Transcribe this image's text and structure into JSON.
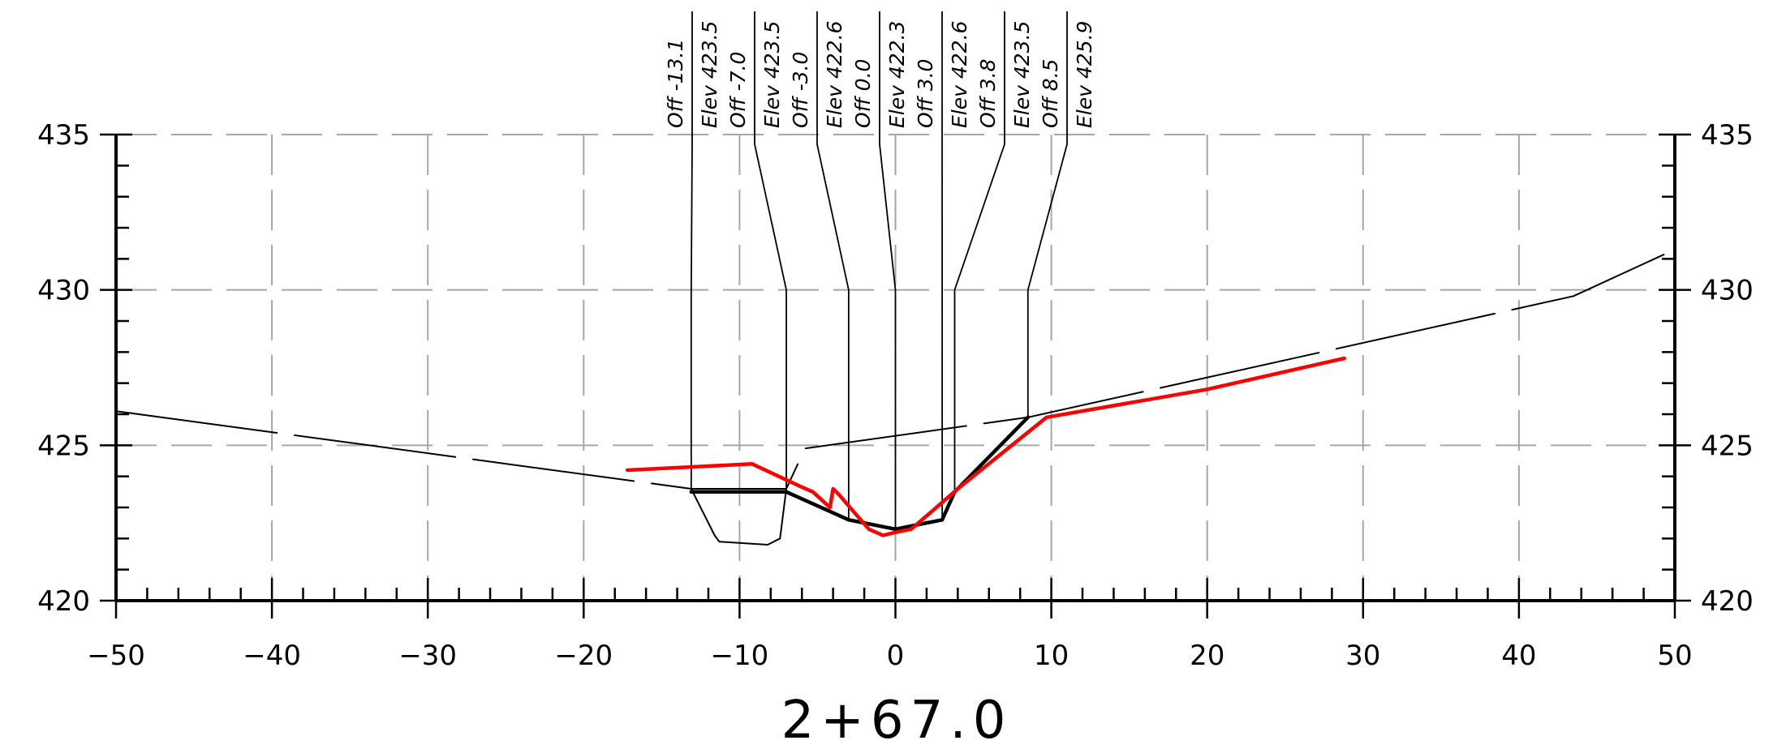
{
  "chart_data": {
    "type": "line",
    "title": "2+67.0",
    "xlim": [
      -50,
      50
    ],
    "ylim": [
      420,
      435
    ],
    "x_ticks": [
      -50,
      -40,
      -30,
      -20,
      -10,
      0,
      10,
      20,
      30,
      40,
      50
    ],
    "y_ticks": [
      420,
      425,
      430,
      435
    ],
    "grid": true,
    "series": [
      {
        "key": "existing_ground",
        "color": "#000000",
        "style": "long-dash",
        "points": [
          [
            -50,
            426.1
          ],
          [
            -13.1,
            423.6
          ],
          [
            -7.0,
            423.6
          ],
          [
            -5.8,
            424.9
          ],
          [
            8.5,
            425.9
          ],
          [
            43.5,
            429.8
          ],
          [
            50,
            431.3
          ]
        ]
      },
      {
        "key": "sump_outline",
        "color": "#000000",
        "style": "thin",
        "points": [
          [
            -13.1,
            423.6
          ],
          [
            -11.6,
            422.1
          ],
          [
            -11.3,
            421.9
          ],
          [
            -8.2,
            421.8
          ],
          [
            -7.4,
            422.0
          ],
          [
            -7.0,
            423.6
          ]
        ]
      },
      {
        "key": "design_section",
        "color": "#000000",
        "style": "thick",
        "points": [
          [
            -13.1,
            423.5
          ],
          [
            -7.0,
            423.5
          ],
          [
            -3.0,
            422.6
          ],
          [
            0.0,
            422.3
          ],
          [
            3.0,
            422.6
          ],
          [
            3.8,
            423.5
          ],
          [
            8.5,
            425.9
          ]
        ]
      },
      {
        "key": "surveyed_ground",
        "color": "#ff0000",
        "style": "thick",
        "points": [
          [
            -17.2,
            424.2
          ],
          [
            -9.2,
            424.4
          ],
          [
            -6.2,
            423.7
          ],
          [
            -5.3,
            423.5
          ],
          [
            -4.2,
            423.0
          ],
          [
            -4.0,
            423.6
          ],
          [
            -3.6,
            423.4
          ],
          [
            -2.4,
            422.7
          ],
          [
            -1.7,
            422.3
          ],
          [
            -0.8,
            422.1
          ],
          [
            0.0,
            422.2
          ],
          [
            1.0,
            422.3
          ],
          [
            2.4,
            422.9
          ],
          [
            4.0,
            423.6
          ],
          [
            9.7,
            425.9
          ],
          [
            20.0,
            426.8
          ],
          [
            28.8,
            427.8
          ]
        ]
      }
    ],
    "annotations": [
      {
        "x": -13.1,
        "elev": 423.5,
        "offset_label": "Off -13.1",
        "elev_label": "Elev 423.5"
      },
      {
        "x": -7.0,
        "elev": 423.5,
        "offset_label": "Off -7.0",
        "elev_label": "Elev 423.5"
      },
      {
        "x": -3.0,
        "elev": 422.6,
        "offset_label": "Off -3.0",
        "elev_label": "Elev 422.6"
      },
      {
        "x": 0.0,
        "elev": 422.3,
        "offset_label": "Off 0.0",
        "elev_label": "Elev 422.3"
      },
      {
        "x": 3.0,
        "elev": 422.6,
        "offset_label": "Off 3.0",
        "elev_label": "Elev 422.6"
      },
      {
        "x": 3.8,
        "elev": 423.5,
        "offset_label": "Off 3.8",
        "elev_label": "Elev 423.5"
      },
      {
        "x": 8.5,
        "elev": 425.9,
        "offset_label": "Off 8.5",
        "elev_label": "Elev 425.9"
      }
    ]
  }
}
